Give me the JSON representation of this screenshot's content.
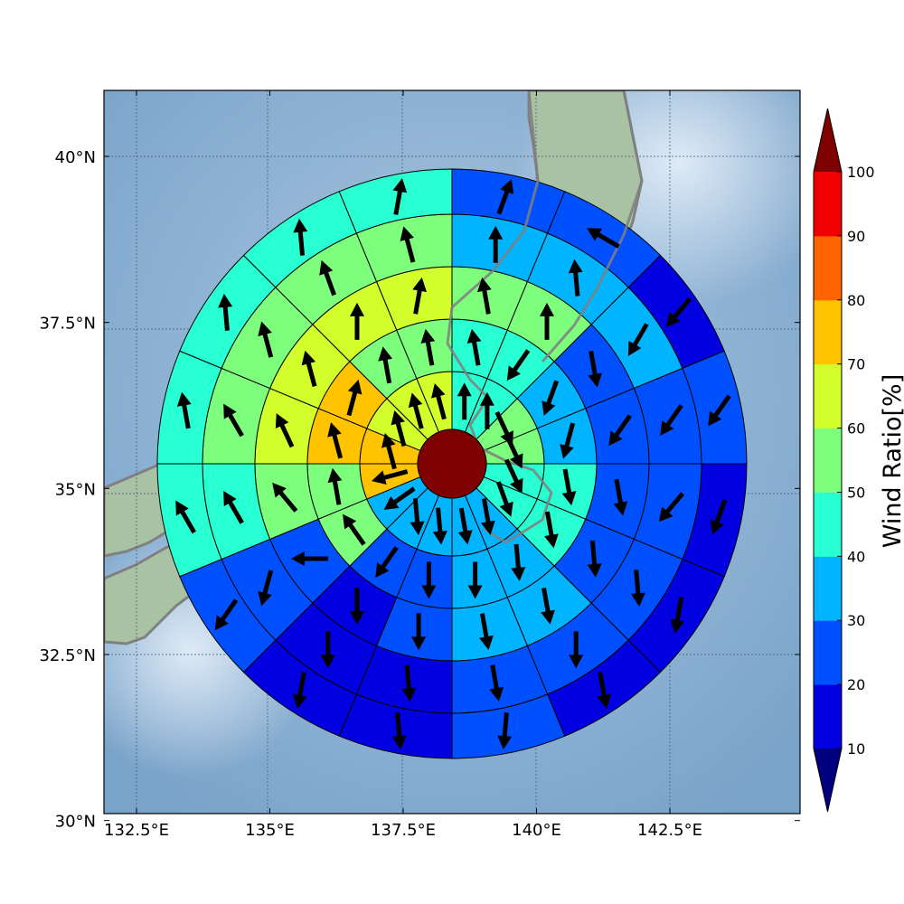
{
  "chart_data": {
    "type": "polar-sector-map",
    "title": "",
    "xlabel": "",
    "ylabel": "",
    "x_ticks": [
      "132.5°E",
      "135°E",
      "137.5°E",
      "140°E",
      "142.5°E"
    ],
    "y_ticks": [
      "30°N",
      "32.5°N",
      "35°N",
      "37.5°N",
      "40°N"
    ],
    "x_tick_values": [
      132.5,
      135,
      137.5,
      140,
      142.5
    ],
    "y_tick_values": [
      30,
      32.5,
      35,
      37.5,
      40
    ],
    "xlim": [
      132,
      145
    ],
    "ylim": [
      30,
      41
    ],
    "grid": true,
    "center": {
      "lon": 138.4,
      "lat": 35.45,
      "value": 100
    },
    "colorbar": {
      "label": "Wind Ratio[%]",
      "ticks": [
        "10",
        "20",
        "30",
        "40",
        "50",
        "60",
        "70",
        "80",
        "90",
        "100"
      ],
      "levels": [
        10,
        20,
        30,
        40,
        50,
        60,
        70,
        80,
        90,
        100
      ],
      "colors": [
        "#0000e0",
        "#0050ff",
        "#00b4ff",
        "#28ffd2",
        "#7dff7d",
        "#d2ff2c",
        "#ffc300",
        "#ff6400",
        "#f00000"
      ],
      "under_color": "#00007f",
      "over_color": "#7f0000",
      "extend": "both"
    },
    "sector_count": 16,
    "sector_start_bearing_deg": 0,
    "sector_width_deg": 22.5,
    "rings": [
      {
        "ring": 1,
        "values": [
          40,
          40,
          50,
          50,
          40,
          40,
          30,
          30,
          30,
          30,
          30,
          70,
          70,
          60,
          60,
          60
        ],
        "wind_directions_deg": [
          0,
          0,
          155,
          155,
          155,
          160,
          170,
          170,
          175,
          175,
          235,
          255,
          345,
          345,
          345,
          345
        ]
      },
      {
        "ring": 2,
        "values": [
          40,
          40,
          30,
          30,
          40,
          40,
          30,
          30,
          20,
          20,
          50,
          50,
          70,
          70,
          50,
          50
        ],
        "wind_directions_deg": [
          350,
          215,
          200,
          195,
          170,
          170,
          175,
          180,
          180,
          215,
          325,
          350,
          345,
          15,
          350,
          350
        ]
      },
      {
        "ring": 3,
        "values": [
          50,
          50,
          20,
          20,
          20,
          20,
          30,
          30,
          20,
          10,
          20,
          50,
          60,
          60,
          60,
          60
        ],
        "wind_directions_deg": [
          350,
          0,
          170,
          215,
          170,
          175,
          170,
          170,
          180,
          180,
          270,
          320,
          335,
          345,
          0,
          10
        ]
      },
      {
        "ring": 4,
        "values": [
          30,
          30,
          30,
          20,
          20,
          20,
          20,
          20,
          10,
          10,
          20,
          40,
          50,
          50,
          50,
          50
        ],
        "wind_directions_deg": [
          0,
          355,
          210,
          215,
          220,
          175,
          180,
          170,
          175,
          180,
          195,
          330,
          330,
          345,
          340,
          345
        ]
      },
      {
        "ring": 5,
        "values": [
          20,
          20,
          10,
          20,
          10,
          10,
          10,
          20,
          10,
          10,
          20,
          40,
          40,
          40,
          40,
          40
        ],
        "wind_directions_deg": [
          20,
          300,
          220,
          215,
          200,
          190,
          170,
          185,
          175,
          190,
          215,
          330,
          350,
          355,
          355,
          10
        ]
      }
    ]
  }
}
